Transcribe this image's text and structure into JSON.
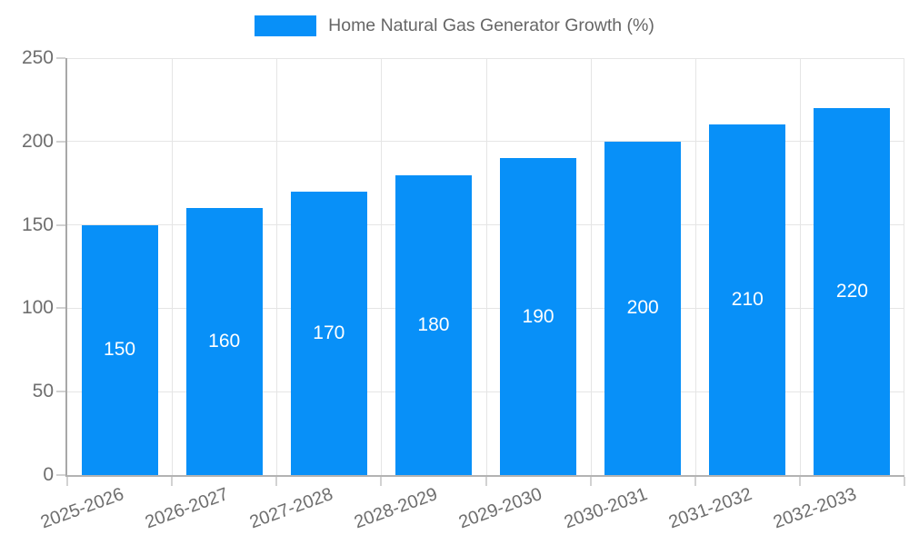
{
  "chart_data": {
    "type": "bar",
    "title": "Home Natural Gas Generator Growth (%)",
    "categories": [
      "2025-2026",
      "2026-2027",
      "2027-2028",
      "2028-2029",
      "2029-2030",
      "2030-2031",
      "2031-2032",
      "2032-2033"
    ],
    "values": [
      150,
      160,
      170,
      180,
      190,
      200,
      210,
      220
    ],
    "xlabel": "",
    "ylabel": "",
    "ylim": [
      0,
      250
    ],
    "yticks": [
      0,
      50,
      100,
      150,
      200,
      250
    ],
    "grid": true,
    "legend_position": "top",
    "bar_color": "#0890F8",
    "bar_label_color": "#ffffff",
    "grid_color": "#e5e5e5",
    "axis_color": "#b0b0b0",
    "tick_mark_color": "#d2d2d2",
    "tick_text_color": "#6e6e6e",
    "legend_text_color": "#666666"
  }
}
